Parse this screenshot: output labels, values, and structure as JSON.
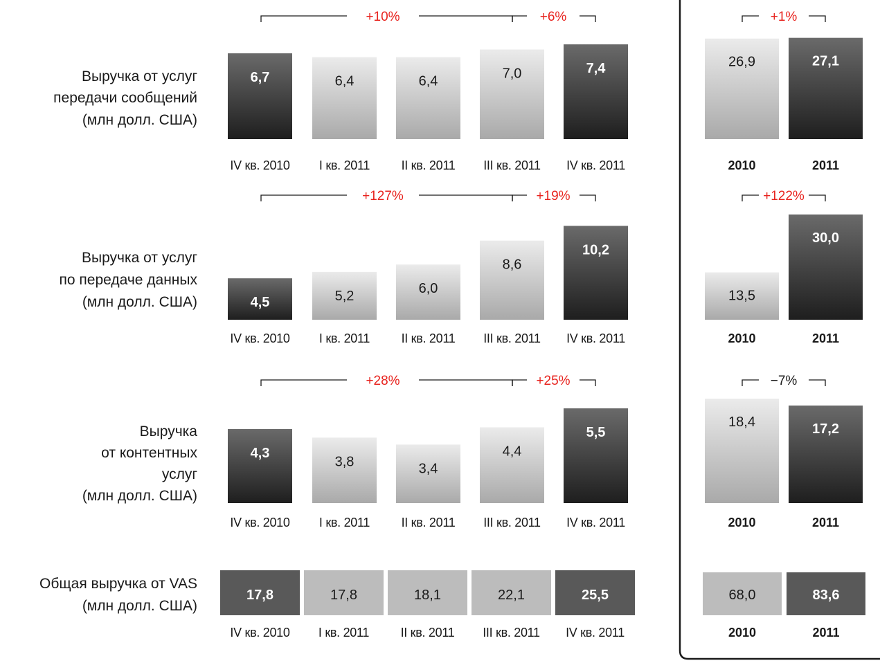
{
  "colors": {
    "dark_top": "#6a6a6a",
    "dark_bottom": "#1e1e1e",
    "light_top": "#ebebeb",
    "light_bottom": "#a9a9a9",
    "total_dark": "#595959",
    "total_light": "#bcbcbc",
    "positive_growth": "#e8231e",
    "negative_growth": "#1a1a1a",
    "bracket": "#1a1a1a",
    "frame": "#1a1a1a"
  },
  "quarter_labels": [
    "IV кв. 2010",
    "I кв. 2011",
    "II кв. 2011",
    "III кв. 2011",
    "IV кв. 2011"
  ],
  "year_labels": [
    "2010",
    "2011"
  ],
  "chart_data": [
    {
      "type": "bar",
      "row_label": [
        "Выручка от услуг",
        "передачи сообщений",
        "(млн долл. США)"
      ],
      "quarterly": {
        "categories": [
          "IV кв. 2010",
          "I кв. 2011",
          "II кв. 2011",
          "III кв. 2011",
          "IV кв. 2011"
        ],
        "values": [
          6.7,
          6.4,
          6.4,
          7.0,
          7.4
        ],
        "labels": [
          "6,7",
          "6,4",
          "6,4",
          "7,0",
          "7,4"
        ],
        "highlight": [
          true,
          false,
          false,
          false,
          true
        ],
        "growth_yoy": "+10%",
        "growth_qoq": "+6%"
      },
      "annual": {
        "categories": [
          "2010",
          "2011"
        ],
        "values": [
          26.9,
          27.1
        ],
        "labels": [
          "26,9",
          "27,1"
        ],
        "highlight": [
          false,
          true
        ],
        "growth": "+1%"
      }
    },
    {
      "type": "bar",
      "row_label": [
        "Выручка от услуг",
        "по передаче данных",
        "(млн долл. США)"
      ],
      "quarterly": {
        "categories": [
          "IV кв. 2010",
          "I кв. 2011",
          "II кв. 2011",
          "III кв. 2011",
          "IV кв. 2011"
        ],
        "values": [
          4.5,
          5.2,
          6.0,
          8.6,
          10.2
        ],
        "labels": [
          "4,5",
          "5,2",
          "6,0",
          "8,6",
          "10,2"
        ],
        "highlight": [
          true,
          false,
          false,
          false,
          true
        ],
        "growth_yoy": "+127%",
        "growth_qoq": "+19%"
      },
      "annual": {
        "categories": [
          "2010",
          "2011"
        ],
        "values": [
          13.5,
          30.0
        ],
        "labels": [
          "13,5",
          "30,0"
        ],
        "highlight": [
          false,
          true
        ],
        "growth": "+122%"
      }
    },
    {
      "type": "bar",
      "row_label": [
        "Выручка",
        "от контентных",
        "услуг",
        "(млн долл. США)"
      ],
      "quarterly": {
        "categories": [
          "IV кв. 2010",
          "I кв. 2011",
          "II кв. 2011",
          "III кв. 2011",
          "IV кв. 2011"
        ],
        "values": [
          4.3,
          3.8,
          3.4,
          4.4,
          5.5
        ],
        "labels": [
          "4,3",
          "3,8",
          "3,4",
          "4,4",
          "5,5"
        ],
        "highlight": [
          true,
          false,
          false,
          false,
          true
        ],
        "growth_yoy": "+28%",
        "growth_qoq": "+25%"
      },
      "annual": {
        "categories": [
          "2010",
          "2011"
        ],
        "values": [
          18.4,
          17.2
        ],
        "labels": [
          "18,4",
          "17,2"
        ],
        "highlight": [
          false,
          true
        ],
        "growth": "−7%"
      }
    },
    {
      "type": "table",
      "row_label": [
        "Общая выручка от VAS",
        "(млн долл. США)"
      ],
      "quarterly": {
        "categories": [
          "IV кв. 2010",
          "I кв. 2011",
          "II кв. 2011",
          "III кв. 2011",
          "IV кв. 2011"
        ],
        "values": [
          17.8,
          17.8,
          18.1,
          22.1,
          25.5
        ],
        "labels": [
          "17,8",
          "17,8",
          "18,1",
          "22,1",
          "25,5"
        ],
        "highlight": [
          true,
          false,
          false,
          false,
          true
        ]
      },
      "annual": {
        "categories": [
          "2010",
          "2011"
        ],
        "values": [
          68.0,
          83.6
        ],
        "labels": [
          "68,0",
          "83,6"
        ],
        "highlight": [
          false,
          true
        ]
      }
    }
  ]
}
